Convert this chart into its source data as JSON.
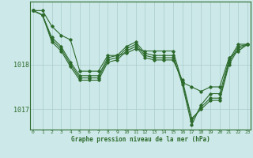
{
  "xlabel": "Graphe pression niveau de la mer (hPa)",
  "bg_color": "#cce8e8",
  "grid_color": "#aacccc",
  "line_color": "#2d6b2d",
  "x_ticks": [
    0,
    1,
    2,
    3,
    4,
    5,
    6,
    7,
    8,
    9,
    10,
    11,
    12,
    13,
    14,
    15,
    16,
    17,
    18,
    19,
    20,
    21,
    22,
    23
  ],
  "ylim": [
    1016.55,
    1019.4
  ],
  "yticks": [
    1017.0,
    1018.0
  ],
  "series": [
    [
      1019.2,
      1019.2,
      1018.85,
      1018.65,
      1018.55,
      1017.85,
      1017.85,
      1017.85,
      1018.2,
      1018.2,
      1018.25,
      1018.35,
      1018.3,
      1018.3,
      1018.3,
      1018.3,
      1017.6,
      1017.5,
      1017.4,
      1017.5,
      1017.5,
      1018.15,
      1018.3,
      1018.45
    ],
    [
      1019.2,
      1019.1,
      1018.6,
      1018.4,
      1018.05,
      1017.75,
      1017.75,
      1017.75,
      1018.15,
      1018.2,
      1018.4,
      1018.5,
      1018.25,
      1018.2,
      1018.2,
      1018.2,
      1017.55,
      1016.65,
      1017.1,
      1017.35,
      1017.35,
      1018.1,
      1018.45,
      1018.45
    ],
    [
      1019.2,
      1019.1,
      1018.55,
      1018.35,
      1018.0,
      1017.7,
      1017.7,
      1017.7,
      1018.1,
      1018.15,
      1018.35,
      1018.45,
      1018.2,
      1018.15,
      1018.15,
      1018.15,
      1017.6,
      1016.75,
      1017.05,
      1017.25,
      1017.25,
      1018.05,
      1018.4,
      1018.45
    ],
    [
      1019.2,
      1019.1,
      1018.5,
      1018.3,
      1017.95,
      1017.65,
      1017.65,
      1017.65,
      1018.05,
      1018.1,
      1018.3,
      1018.4,
      1018.15,
      1018.1,
      1018.1,
      1018.1,
      1017.65,
      1016.8,
      1017.0,
      1017.2,
      1017.2,
      1018.0,
      1018.35,
      1018.45
    ]
  ]
}
